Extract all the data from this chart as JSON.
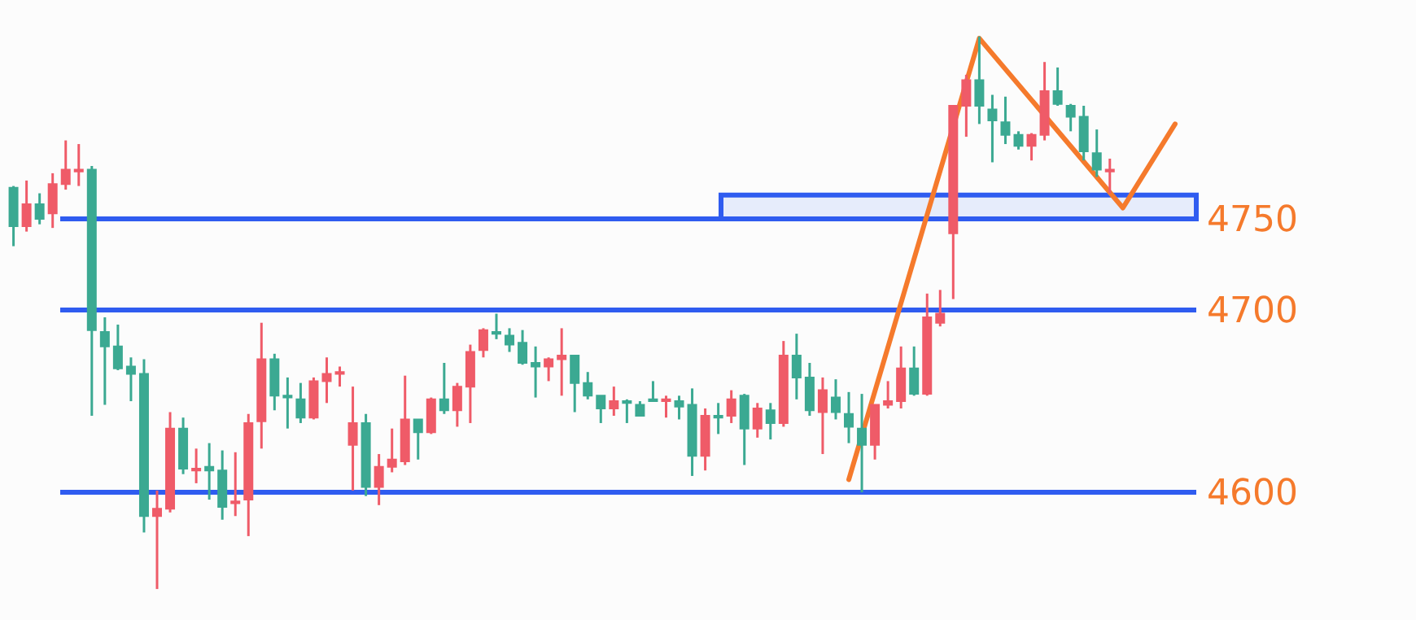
{
  "chart_data": {
    "type": "candlestick",
    "categories": [
      null,
      null,
      null,
      null,
      null,
      null,
      null,
      null,
      null,
      null,
      null,
      null,
      null,
      null,
      null,
      null,
      null,
      null,
      null,
      null,
      null,
      null,
      null,
      null,
      null,
      null,
      null,
      null,
      null,
      null,
      null,
      null,
      null,
      null,
      null,
      null,
      null,
      null,
      null,
      null,
      null,
      null,
      null,
      null,
      null,
      null,
      null,
      null,
      null,
      null,
      null,
      null,
      null,
      null,
      null,
      null,
      null,
      null,
      null,
      null,
      null,
      null,
      null,
      null,
      null,
      null,
      null,
      null,
      null,
      null,
      null,
      null,
      null,
      null,
      null,
      null,
      null,
      null,
      null,
      null,
      null,
      null,
      null,
      null,
      null,
      null,
      null,
      null,
      null,
      null
    ],
    "ohlc": [
      [
        4767,
        4768,
        4735,
        4746
      ],
      [
        4746,
        4771,
        4743,
        4758
      ],
      [
        4758,
        4764,
        4747,
        4750
      ],
      [
        4753,
        4775,
        4745,
        4769
      ],
      [
        4769,
        4793,
        4766,
        4777
      ],
      [
        4776,
        4791,
        4768,
        4777
      ],
      [
        4777,
        4779,
        4642,
        4689
      ],
      [
        4688,
        4696,
        4648,
        4680
      ],
      [
        4680,
        4692,
        4667,
        4668
      ],
      [
        4669,
        4674,
        4650,
        4665
      ],
      [
        4665,
        4673,
        4578,
        4587
      ],
      [
        4587,
        4601,
        4547,
        4591
      ],
      [
        4591,
        4644,
        4589,
        4635
      ],
      [
        4635,
        4641,
        4610,
        4613
      ],
      [
        4612,
        4624,
        4605,
        4613
      ],
      [
        4614,
        4627,
        4596,
        4612
      ],
      [
        4612,
        4623,
        4585,
        4592
      ],
      [
        4594,
        4622,
        4587,
        4595
      ],
      [
        4596,
        4643,
        4576,
        4638
      ],
      [
        4639,
        4693,
        4624,
        4673
      ],
      [
        4673,
        4676,
        4645,
        4653
      ],
      [
        4653,
        4663,
        4635,
        4652
      ],
      [
        4651,
        4660,
        4638,
        4641
      ],
      [
        4641,
        4663,
        4640,
        4661
      ],
      [
        4661,
        4674,
        4649,
        4665
      ],
      [
        4665,
        4669,
        4658,
        4666
      ],
      [
        4626,
        4658,
        4601,
        4638
      ],
      [
        4638,
        4643,
        4598,
        4603
      ],
      [
        4603,
        4621,
        4593,
        4614
      ],
      [
        4614,
        4635,
        4611,
        4618
      ],
      [
        4617,
        4664,
        4615,
        4640
      ],
      [
        4640,
        4640,
        4618,
        4633
      ],
      [
        4633,
        4652,
        4632,
        4651
      ],
      [
        4651,
        4671,
        4643,
        4645
      ],
      [
        4645,
        4660,
        4636,
        4658
      ],
      [
        4658,
        4681,
        4638,
        4677
      ],
      [
        4678,
        4690,
        4674,
        4689
      ],
      [
        4688,
        4698,
        4684,
        4687
      ],
      [
        4686,
        4690,
        4677,
        4681
      ],
      [
        4682,
        4689,
        4670,
        4671
      ],
      [
        4671,
        4680,
        4652,
        4669
      ],
      [
        4669,
        4674,
        4661,
        4673
      ],
      [
        4673,
        4690,
        4653,
        4675
      ],
      [
        4675,
        4675,
        4644,
        4660
      ],
      [
        4660,
        4666,
        4651,
        4653
      ],
      [
        4653,
        4653,
        4638,
        4646
      ],
      [
        4646,
        4658,
        4642,
        4650
      ],
      [
        4650,
        4651,
        4638,
        4649
      ],
      [
        4648,
        4650,
        4642,
        4642
      ],
      [
        4651,
        4661,
        4650,
        4650
      ],
      [
        4650,
        4653,
        4641,
        4651
      ],
      [
        4650,
        4653,
        4640,
        4647
      ],
      [
        4648,
        4657,
        4609,
        4620
      ],
      [
        4620,
        4646,
        4612,
        4642
      ],
      [
        4642,
        4649,
        4632,
        4641
      ],
      [
        4642,
        4656,
        4638,
        4651
      ],
      [
        4653,
        4654,
        4615,
        4635
      ],
      [
        4635,
        4649,
        4630,
        4646
      ],
      [
        4645,
        4649,
        4629,
        4638
      ],
      [
        4638,
        4683,
        4636,
        4675
      ],
      [
        4675,
        4687,
        4651,
        4663
      ],
      [
        4663,
        4671,
        4642,
        4645
      ],
      [
        4644,
        4663,
        4621,
        4656
      ],
      [
        4652,
        4662,
        4640,
        4644
      ],
      [
        4643,
        4655,
        4627,
        4636
      ],
      [
        4635,
        4654,
        4600,
        4626
      ],
      [
        4626,
        4648,
        4618,
        4648
      ],
      [
        4648,
        4661,
        4646,
        4650
      ],
      [
        4650,
        4680,
        4646,
        4668
      ],
      [
        4668,
        4680,
        4653,
        4654
      ],
      [
        4654,
        4709,
        4653,
        4696
      ],
      [
        4693,
        4711,
        4691,
        4698
      ],
      [
        4742,
        4812,
        4706,
        4812
      ],
      [
        4812,
        4829,
        4795,
        4826
      ],
      [
        4826,
        4850,
        4802,
        4812
      ],
      [
        4810,
        4818,
        4781,
        4804
      ],
      [
        4803,
        4817,
        4791,
        4796
      ],
      [
        4796,
        4798,
        4788,
        4790
      ],
      [
        4790,
        4797,
        4782,
        4796
      ],
      [
        4796,
        4836,
        4793,
        4820
      ],
      [
        4820,
        4833,
        4812,
        4813
      ],
      [
        4812,
        4813,
        4798,
        4806
      ],
      [
        4806,
        4812,
        4782,
        4787
      ],
      [
        4786,
        4799,
        4773,
        4777
      ],
      [
        4776,
        4783,
        4764,
        4777
      ],
      null,
      null,
      null,
      null,
      null
    ],
    "colors": [
      "#3ba992",
      "#ef5b68",
      "#3ba992",
      "#ef5b68",
      "#ef5b68",
      "#ef5b68",
      "#3ba992",
      "#3ba992",
      "#3ba992",
      "#3ba992",
      "#3ba992",
      "#ef5b68",
      "#ef5b68",
      "#3ba992",
      "#ef5b68",
      "#3ba992",
      "#3ba992",
      "#ef5b68",
      "#ef5b68",
      "#ef5b68",
      "#3ba992",
      "#3ba992",
      "#3ba992",
      "#ef5b68",
      "#ef5b68",
      "#ef5b68",
      "#ef5b68",
      "#3ba992",
      "#ef5b68",
      "#ef5b68",
      "#ef5b68",
      "#3ba992",
      "#ef5b68",
      "#3ba992",
      "#ef5b68",
      "#ef5b68",
      "#ef5b68",
      "#3ba992",
      "#3ba992",
      "#3ba992",
      "#3ba992",
      "#ef5b68",
      "#ef5b68",
      "#3ba992",
      "#3ba992",
      "#3ba992",
      "#ef5b68",
      "#3ba992",
      "#3ba992",
      "#3ba992",
      "#ef5b68",
      "#3ba992",
      "#3ba992",
      "#ef5b68",
      "#3ba992",
      "#ef5b68",
      "#3ba992",
      "#ef5b68",
      "#3ba992",
      "#ef5b68",
      "#3ba992",
      "#3ba992",
      "#ef5b68",
      "#3ba992",
      "#3ba992",
      "#3ba992",
      "#ef5b68",
      "#ef5b68",
      "#ef5b68",
      "#3ba992",
      "#ef5b68",
      "#ef5b68",
      "#ef5b68",
      "#ef5b68",
      "#3ba992",
      "#3ba992",
      "#3ba992",
      "#3ba992",
      "#ef5b68",
      "#ef5b68",
      "#3ba992",
      "#3ba992",
      "#3ba992",
      "#3ba992",
      "#ef5b68",
      null,
      null,
      null,
      null,
      null
    ],
    "series": [
      {
        "type": "line",
        "color": "#f57a2c",
        "values": [
          null,
          null,
          null,
          null,
          null,
          null,
          null,
          null,
          null,
          null,
          null,
          null,
          null,
          null,
          null,
          null,
          null,
          null,
          null,
          null,
          null,
          null,
          null,
          null,
          null,
          null,
          null,
          null,
          null,
          null,
          null,
          null,
          null,
          null,
          null,
          null,
          null,
          null,
          null,
          null,
          null,
          null,
          null,
          null,
          null,
          null,
          null,
          null,
          null,
          null,
          null,
          null,
          null,
          null,
          null,
          null,
          null,
          null,
          null,
          null,
          null,
          null,
          null,
          null,
          4607,
          null,
          null,
          null,
          null,
          null,
          null,
          null,
          null,
          null,
          4849,
          null,
          null,
          null,
          null,
          null,
          null,
          null,
          null,
          null,
          null,
          4756,
          null,
          null,
          null,
          4802
        ]
      }
    ],
    "ylim": [
      4530,
      4870
    ],
    "yticks": [
      4600,
      4700,
      4750
    ],
    "ref_lines": [
      {
        "axis": "y",
        "value": 4750,
        "color": "#2f5cf0"
      },
      {
        "axis": "y",
        "value": 4700,
        "color": "#2f5cf0"
      },
      {
        "axis": "y",
        "value": 4600,
        "color": "#2f5cf0"
      }
    ],
    "bands": [
      {
        "axis": "y",
        "from": 4750,
        "to": 4763,
        "color": "#e6ecfb"
      }
    ],
    "tick_labels": "y"
  }
}
